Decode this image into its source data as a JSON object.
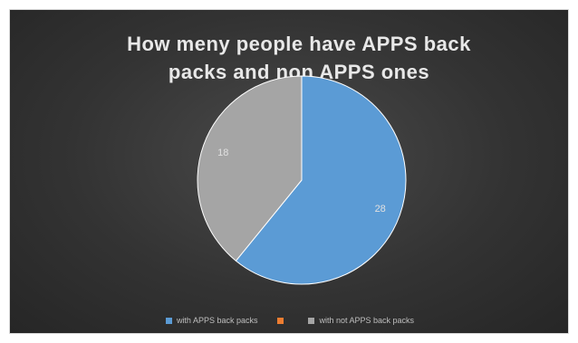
{
  "chart_data": {
    "type": "pie",
    "title": "How meny people have APPS back packs and non APPS ones",
    "title_lines": [
      "How meny people have APPS back",
      "packs and non APPS ones"
    ],
    "slices": [
      {
        "label": "with APPS back packs",
        "value": 28,
        "color": "#5b9bd5"
      },
      {
        "label": "",
        "value": 0,
        "color": "#ed7d31"
      },
      {
        "label": "with not APPS back packs",
        "value": 18,
        "color": "#a5a5a5"
      }
    ],
    "data_labels_shown": true,
    "legend_position": "bottom"
  },
  "colors": {
    "background": "#333333",
    "title": "#e8e8e8",
    "slice_border": "#ffffff",
    "data_label": "#e0e0e0"
  }
}
